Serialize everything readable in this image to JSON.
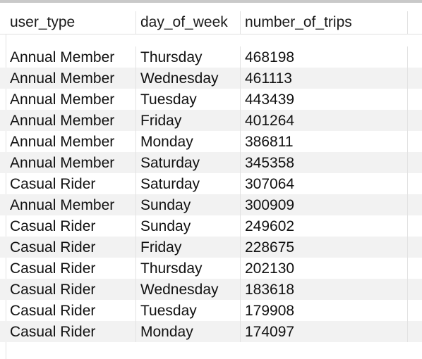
{
  "table": {
    "columns": [
      "user_type",
      "day_of_week",
      "number_of_trips"
    ],
    "rows": [
      [
        "Annual Member",
        "Thursday",
        "468198"
      ],
      [
        "Annual Member",
        "Wednesday",
        "461113"
      ],
      [
        "Annual Member",
        "Tuesday",
        "443439"
      ],
      [
        "Annual Member",
        "Friday",
        "401264"
      ],
      [
        "Annual Member",
        "Monday",
        "386811"
      ],
      [
        "Annual Member",
        "Saturday",
        "345358"
      ],
      [
        "Casual Rider",
        "Saturday",
        "307064"
      ],
      [
        "Annual Member",
        "Sunday",
        "300909"
      ],
      [
        "Casual Rider",
        "Sunday",
        "249602"
      ],
      [
        "Casual Rider",
        "Friday",
        "228675"
      ],
      [
        "Casual Rider",
        "Thursday",
        "202130"
      ],
      [
        "Casual Rider",
        "Wednesday",
        "183618"
      ],
      [
        "Casual Rider",
        "Tuesday",
        "179908"
      ],
      [
        "Casual Rider",
        "Monday",
        "174097"
      ]
    ]
  },
  "colors": {
    "row_stripe": "#f2f2f2",
    "grid_line": "#e2e2e2",
    "text": "#111111"
  }
}
